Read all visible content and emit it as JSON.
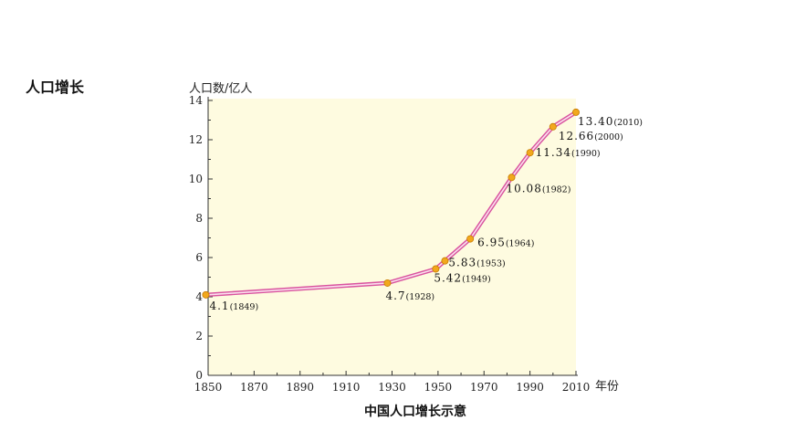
{
  "page": {
    "heading": "人口增长"
  },
  "chart_data": {
    "type": "line",
    "title": "中国人口增长示意",
    "xlabel": "年份",
    "ylabel": "人口数/亿人",
    "xlim": [
      1850,
      2010
    ],
    "ylim": [
      0,
      14
    ],
    "x_ticks": [
      1850,
      1870,
      1890,
      1910,
      1930,
      1950,
      1970,
      1990,
      2010
    ],
    "y_ticks": [
      0,
      2,
      4,
      6,
      8,
      10,
      12,
      14
    ],
    "grid": false,
    "background": "#fefbe0",
    "line_color": "#d9539f",
    "marker_color": "#f2a81d",
    "series": [
      {
        "points": [
          {
            "x": 1849,
            "y": 4.1,
            "value_label": "4.1",
            "year_label": "(1849)"
          },
          {
            "x": 1928,
            "y": 4.7,
            "value_label": "4.7",
            "year_label": "(1928)"
          },
          {
            "x": 1949,
            "y": 5.42,
            "value_label": "5.42",
            "year_label": "(1949)"
          },
          {
            "x": 1953,
            "y": 5.83,
            "value_label": "5.83",
            "year_label": "(1953)"
          },
          {
            "x": 1964,
            "y": 6.95,
            "value_label": "6.95",
            "year_label": "(1964)"
          },
          {
            "x": 1982,
            "y": 10.08,
            "value_label": "10.08",
            "year_label": "(1982)"
          },
          {
            "x": 1990,
            "y": 11.34,
            "value_label": "11.34",
            "year_label": "(1990)"
          },
          {
            "x": 2000,
            "y": 12.66,
            "value_label": "12.66",
            "year_label": "(2000)"
          },
          {
            "x": 2010,
            "y": 13.4,
            "value_label": "13.40",
            "year_label": "(2010)"
          }
        ]
      }
    ]
  }
}
